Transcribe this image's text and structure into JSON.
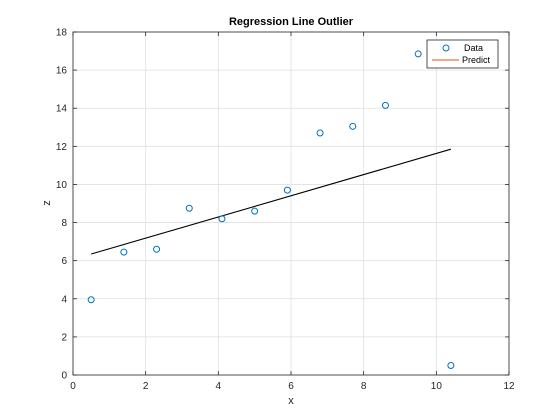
{
  "chart_data": {
    "type": "scatter",
    "title": "Regression Line Outlier",
    "xlabel": "x",
    "ylabel": "z",
    "xlim": [
      0,
      12
    ],
    "ylim": [
      0,
      18
    ],
    "xticks": [
      "0",
      "2",
      "4",
      "6",
      "8",
      "10",
      "12"
    ],
    "yticks": [
      "0",
      "2",
      "4",
      "6",
      "8",
      "10",
      "12",
      "14",
      "16",
      "18"
    ],
    "grid": true,
    "legend_position": "top-right",
    "series": [
      {
        "name": "Data",
        "kind": "scatter",
        "marker": "circle",
        "color": "#0072BD",
        "x": [
          0.5,
          1.4,
          2.3,
          3.2,
          4.1,
          5.0,
          5.9,
          6.8,
          7.7,
          8.6,
          9.5,
          10.4
        ],
        "y": [
          3.95,
          6.45,
          6.6,
          8.75,
          8.2,
          8.6,
          9.7,
          12.7,
          13.05,
          14.15,
          16.85,
          0.5
        ]
      },
      {
        "name": "Predict",
        "kind": "line",
        "color": "#000000",
        "legend_color": "#D95319",
        "x": [
          0.5,
          10.4
        ],
        "y": [
          6.35,
          11.85
        ]
      }
    ]
  }
}
